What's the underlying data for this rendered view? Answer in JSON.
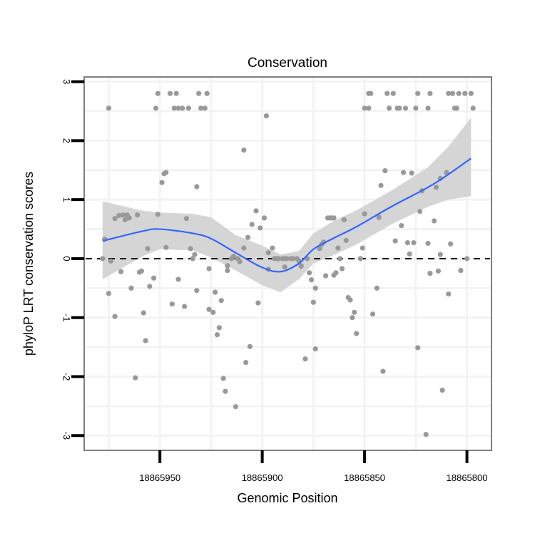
{
  "chart_data": {
    "type": "scatter",
    "title": "Conservation",
    "xlabel": "Genomic Position",
    "ylabel": "phyloP LRT conservation scores",
    "xlim": [
      18865987,
      18865788
    ],
    "ylim": [
      -3.25,
      3.08
    ],
    "x_reversed": true,
    "grid": true,
    "x_ticks": [
      18865950,
      18865900,
      18865850,
      18865800
    ],
    "x_tick_labels": [
      "18865950",
      "18865900",
      "18865850",
      "18865800"
    ],
    "y_ticks": [
      -3,
      -2,
      -1,
      0,
      1,
      2,
      3
    ],
    "y_tick_labels": [
      "-3",
      "-2",
      "-1",
      "0",
      "1",
      "2",
      "3"
    ],
    "reference_line": {
      "y": 0,
      "style": "dashed"
    },
    "colors": {
      "points": "#999999",
      "fit": "#3366FF",
      "ribbon": "#d5d5d5",
      "frame": "#7f7f7f"
    },
    "points": [
      [
        18865951,
        2.8
      ],
      [
        18865945,
        2.8
      ],
      [
        18865942,
        2.8
      ],
      [
        18865931,
        2.8
      ],
      [
        18865927,
        2.8
      ],
      [
        18865848,
        2.8
      ],
      [
        18865847,
        2.8
      ],
      [
        18865839,
        2.8
      ],
      [
        18865836,
        2.8
      ],
      [
        18865824,
        2.8
      ],
      [
        18865818,
        2.8
      ],
      [
        18865809,
        2.8
      ],
      [
        18865807,
        2.8
      ],
      [
        18865804,
        2.8
      ],
      [
        18865801,
        2.8
      ],
      [
        18865798,
        2.8
      ],
      [
        18865975,
        2.55
      ],
      [
        18865952,
        2.55
      ],
      [
        18865943,
        2.55
      ],
      [
        18865941,
        2.55
      ],
      [
        18865939,
        2.55
      ],
      [
        18865936,
        2.55
      ],
      [
        18865930,
        2.55
      ],
      [
        18865928,
        2.55
      ],
      [
        18865850,
        2.55
      ],
      [
        18865848,
        2.55
      ],
      [
        18865838,
        2.55
      ],
      [
        18865834,
        2.55
      ],
      [
        18865833,
        2.55
      ],
      [
        18865830,
        2.55
      ],
      [
        18865825,
        2.55
      ],
      [
        18865819,
        2.55
      ],
      [
        18865806,
        2.55
      ],
      [
        18865805,
        2.55
      ],
      [
        18865797,
        2.55
      ],
      [
        18865978,
        0.0
      ],
      [
        18865977,
        0.33
      ],
      [
        18865975,
        -0.59
      ],
      [
        18865974,
        -0.04
      ],
      [
        18865972,
        0.68
      ],
      [
        18865972,
        -0.98
      ],
      [
        18865970,
        0.73
      ],
      [
        18865969,
        -0.22
      ],
      [
        18865968,
        0.74
      ],
      [
        18865967,
        0.66
      ],
      [
        18865966,
        0.74
      ],
      [
        18865965,
        0.69
      ],
      [
        18865964,
        -0.5
      ],
      [
        18865962,
        -2.02
      ],
      [
        18865961,
        0.74
      ],
      [
        18865960,
        -0.23
      ],
      [
        18865959,
        -0.21
      ],
      [
        18865958,
        -0.92
      ],
      [
        18865957,
        -1.39
      ],
      [
        18865956,
        0.17
      ],
      [
        18865955,
        -0.47
      ],
      [
        18865953,
        -0.33
      ],
      [
        18865951,
        0.75
      ],
      [
        18865949,
        1.29
      ],
      [
        18865948,
        1.44
      ],
      [
        18865947,
        1.46
      ],
      [
        18865947,
        0.19
      ],
      [
        18865944,
        -0.77
      ],
      [
        18865941,
        -0.35
      ],
      [
        18865938,
        -0.81
      ],
      [
        18865937,
        0.68
      ],
      [
        18865935,
        0.17
      ],
      [
        18865934,
        0.0
      ],
      [
        18865933,
        0.07
      ],
      [
        18865932,
        -0.54
      ],
      [
        18865932,
        1.22
      ],
      [
        18865926,
        -0.86
      ],
      [
        18865926,
        -0.17
      ],
      [
        18865924,
        -0.91
      ],
      [
        18865923,
        -0.57
      ],
      [
        18865922,
        -1.29
      ],
      [
        18865921,
        -1.17
      ],
      [
        18865920,
        -0.71
      ],
      [
        18865919,
        -2.03
      ],
      [
        18865918,
        -2.25
      ],
      [
        18865917,
        -0.12
      ],
      [
        18865917,
        -0.2
      ],
      [
        18865915,
        0.0
      ],
      [
        18865914,
        0.04
      ],
      [
        18865913,
        -2.51
      ],
      [
        18865912,
        0.0
      ],
      [
        18865911,
        -0.05
      ],
      [
        18865909,
        1.84
      ],
      [
        18865909,
        0.18
      ],
      [
        18865908,
        -1.76
      ],
      [
        18865907,
        0.36
      ],
      [
        18865906,
        -1.49
      ],
      [
        18865905,
        0.58
      ],
      [
        18865903,
        0.81
      ],
      [
        18865902,
        -0.75
      ],
      [
        18865901,
        0.52
      ],
      [
        18865899,
        0.69
      ],
      [
        18865898,
        2.42
      ],
      [
        18865897,
        -0.18
      ],
      [
        18865897,
        0.1
      ],
      [
        18865895,
        0.18
      ],
      [
        18865894,
        0.0
      ],
      [
        18865893,
        0.0
      ],
      [
        18865892,
        0.0
      ],
      [
        18865890,
        0.0
      ],
      [
        18865889,
        0.0
      ],
      [
        18865888,
        0.0
      ],
      [
        18865886,
        0.0
      ],
      [
        18865885,
        0.0
      ],
      [
        18865883,
        0.0
      ],
      [
        18865889,
        -0.14
      ],
      [
        18865882,
        -0.04
      ],
      [
        18865881,
        -0.12
      ],
      [
        18865881,
        -0.13
      ],
      [
        18865879,
        -1.7
      ],
      [
        18865878,
        0.0
      ],
      [
        18865877,
        -0.24
      ],
      [
        18865876,
        -0.36
      ],
      [
        18865875,
        -0.74
      ],
      [
        18865874,
        -0.5
      ],
      [
        18865874,
        -1.53
      ],
      [
        18865872,
        0.17
      ],
      [
        18865871,
        0.24
      ],
      [
        18865870,
        0.28
      ],
      [
        18865869,
        -0.29
      ],
      [
        18865868,
        0.69
      ],
      [
        18865867,
        0.69
      ],
      [
        18865866,
        0.69
      ],
      [
        18865865,
        0.69
      ],
      [
        18865865,
        -0.28
      ],
      [
        18865864,
        -0.24
      ],
      [
        18865863,
        0.18
      ],
      [
        18865862,
        0.0
      ],
      [
        18865860,
        0.66
      ],
      [
        18865861,
        -0.17
      ],
      [
        18865859,
        0.31
      ],
      [
        18865858,
        -0.66
      ],
      [
        18865857,
        -0.7
      ],
      [
        18865856,
        -1.0
      ],
      [
        18865855,
        -0.91
      ],
      [
        18865854,
        -1.27
      ],
      [
        18865852,
        0.0
      ],
      [
        18865851,
        0.18
      ],
      [
        18865850,
        0.76
      ],
      [
        18865846,
        -0.94
      ],
      [
        18865844,
        -0.5
      ],
      [
        18865843,
        0.7
      ],
      [
        18865842,
        1.24
      ],
      [
        18865841,
        -1.91
      ],
      [
        18865840,
        1.49
      ],
      [
        18865835,
        0.3
      ],
      [
        18865832,
        0.56
      ],
      [
        18865831,
        1.46
      ],
      [
        18865829,
        0.27
      ],
      [
        18865828,
        0.08
      ],
      [
        18865827,
        1.45
      ],
      [
        18865826,
        0.27
      ],
      [
        18865824,
        -1.51
      ],
      [
        18865823,
        0.8
      ],
      [
        18865822,
        1.15
      ],
      [
        18865820,
        -2.98
      ],
      [
        18865819,
        0.26
      ],
      [
        18865818,
        -0.25
      ],
      [
        18865816,
        0.64
      ],
      [
        18865815,
        1.21
      ],
      [
        18865814,
        -0.21
      ],
      [
        18865813,
        0.07
      ],
      [
        18865813,
        1.36
      ],
      [
        18865812,
        -2.23
      ],
      [
        18865810,
        1.46
      ],
      [
        18865809,
        -0.6
      ],
      [
        18865808,
        0.25
      ],
      [
        18865803,
        -0.2
      ],
      [
        18865800,
        0.0
      ]
    ],
    "smooth": {
      "x": [
        18865978,
        18865958,
        18865950,
        18865934,
        18865925,
        18865913,
        18865900,
        18865891,
        18865882,
        18865875,
        18865865,
        18865854,
        18865837,
        18865819,
        18865809,
        18865798
      ],
      "fit": [
        0.3,
        0.47,
        0.5,
        0.43,
        0.34,
        0.1,
        -0.15,
        -0.22,
        -0.08,
        0.16,
        0.35,
        0.54,
        0.88,
        1.21,
        1.43,
        1.7
      ],
      "upper": [
        0.97,
        0.81,
        0.78,
        0.76,
        0.7,
        0.4,
        0.22,
        0.07,
        0.13,
        0.43,
        0.64,
        0.82,
        1.15,
        1.55,
        1.9,
        2.39
      ],
      "lower": [
        -0.35,
        0.05,
        0.16,
        0.14,
        0.02,
        -0.2,
        -0.45,
        -0.57,
        -0.35,
        -0.08,
        0.06,
        0.24,
        0.58,
        0.88,
        1.0,
        1.06
      ]
    }
  }
}
